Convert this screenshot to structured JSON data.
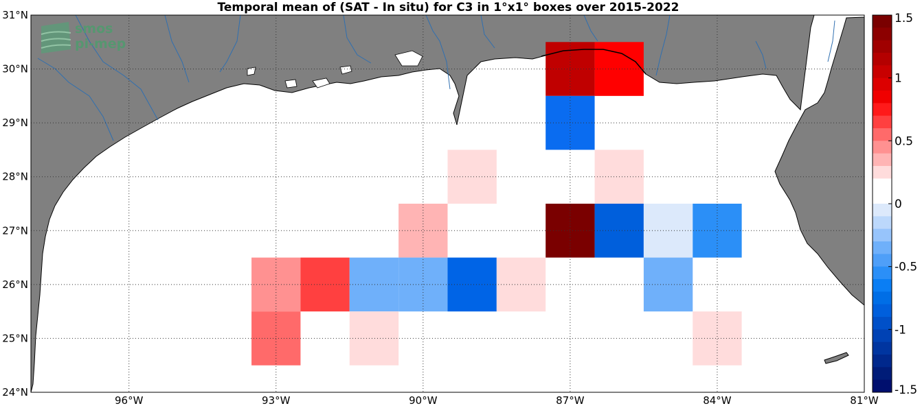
{
  "map": {
    "title": "Temporal mean of (SAT - In situ) for C3 in 1°x1° boxes over 2015-2022",
    "logo": {
      "line1": "smos",
      "line2": "pi-mep"
    },
    "colors": {
      "land": "#808080",
      "ocean": "#ffffff",
      "coastline": "#000000",
      "rivers": "#2f6fb0",
      "grid": "#333333"
    },
    "lon_range": [
      -98,
      -81
    ],
    "lat_range": [
      24,
      31
    ],
    "lat_labels": [
      "31°N",
      "30°N",
      "29°N",
      "28°N",
      "27°N",
      "26°N",
      "25°N",
      "24°N"
    ],
    "lon_labels": [
      "96°W",
      "93°W",
      "90°W",
      "87°W",
      "84°W",
      "81°W"
    ],
    "boxes": [
      {
        "lon": -87,
        "lat": 30,
        "value": 1.1,
        "color": "#c00000"
      },
      {
        "lon": -86,
        "lat": 30,
        "value": 1.0,
        "color": "#ff0000"
      },
      {
        "lon": -87,
        "lat": 29,
        "value": -0.9,
        "color": "#0a6cf0"
      },
      {
        "lon": -89,
        "lat": 28,
        "value": 0.1,
        "color": "#ffdcdc"
      },
      {
        "lon": -86,
        "lat": 28,
        "value": 0.1,
        "color": "#ffdcdc"
      },
      {
        "lon": -90,
        "lat": 27,
        "value": 0.3,
        "color": "#ffb4b4"
      },
      {
        "lon": -87,
        "lat": 27,
        "value": 1.4,
        "color": "#7a0000"
      },
      {
        "lon": -86,
        "lat": 27,
        "value": -1.0,
        "color": "#005fdc"
      },
      {
        "lon": -85,
        "lat": 27,
        "value": -0.1,
        "color": "#dce9fb"
      },
      {
        "lon": -84,
        "lat": 27,
        "value": -0.6,
        "color": "#2b8ff7"
      },
      {
        "lon": -93,
        "lat": 26,
        "value": 0.4,
        "color": "#ff9191"
      },
      {
        "lon": -92,
        "lat": 26,
        "value": 0.8,
        "color": "#ff4040"
      },
      {
        "lon": -91,
        "lat": 26,
        "value": -0.4,
        "color": "#6fb0fa"
      },
      {
        "lon": -90,
        "lat": 26,
        "value": -0.4,
        "color": "#6fb0fa"
      },
      {
        "lon": -89,
        "lat": 26,
        "value": -1.0,
        "color": "#0064e6"
      },
      {
        "lon": -88,
        "lat": 26,
        "value": 0.1,
        "color": "#ffdcdc"
      },
      {
        "lon": -85,
        "lat": 26,
        "value": -0.4,
        "color": "#6fb0fa"
      },
      {
        "lon": -93,
        "lat": 25,
        "value": 0.6,
        "color": "#ff6a6a"
      },
      {
        "lon": -91,
        "lat": 25,
        "value": 0.1,
        "color": "#ffdcdc"
      },
      {
        "lon": -84,
        "lat": 25,
        "value": 0.1,
        "color": "#ffdcdc"
      }
    ]
  },
  "colorbar": {
    "range": [
      -1.5,
      1.5
    ],
    "labels": [
      "1.5",
      "1",
      "0.5",
      "0",
      "-0.5",
      "-1",
      "-1.5"
    ],
    "colors": [
      "#7a0000",
      "#8c0000",
      "#a00000",
      "#b40000",
      "#c80000",
      "#dc0000",
      "#f00000",
      "#ff1a1a",
      "#ff4040",
      "#ff6a6a",
      "#ff9191",
      "#ffb4b4",
      "#ffdcdc",
      "#ffffff",
      "#ffffff",
      "#dce9fb",
      "#bcd8fb",
      "#97c4fb",
      "#6fb0fa",
      "#4f9ff8",
      "#2b8ff7",
      "#0a7ef4",
      "#006ee6",
      "#005fdc",
      "#0050c8",
      "#0042b4",
      "#0035a0",
      "#00288c",
      "#001c78",
      "#000f6e"
    ]
  }
}
